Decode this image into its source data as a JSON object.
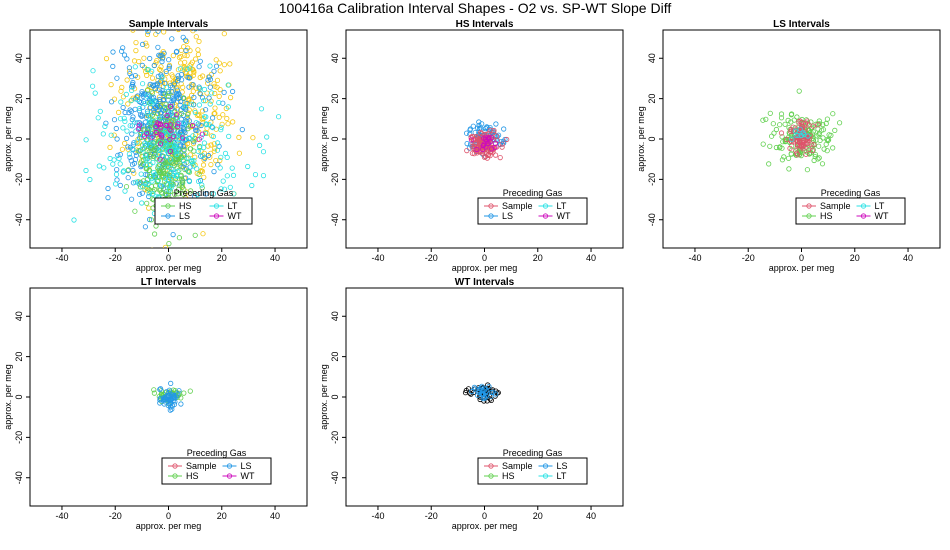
{
  "page_title": "100416a   Calibration Interval Shapes - O2 vs. SP-WT Slope Diff",
  "colors": {
    "Sample": "#df536b",
    "HS": "#61d04f",
    "LS": "#2297e6",
    "LT": "#28e2e5",
    "WT": "#cd0bbc",
    "Sample_primary": "#f5c710",
    "WT_primary": "#000000"
  },
  "chart_data": [
    {
      "type": "scatter",
      "title": "Sample Intervals",
      "xlabel": "approx. per meg",
      "ylabel": "approx. per meg",
      "xlim": [
        -52,
        52
      ],
      "ylim": [
        -54,
        54
      ],
      "xticks": [
        -40,
        -20,
        0,
        20,
        40
      ],
      "yticks": [
        -40,
        -20,
        0,
        20,
        40
      ],
      "legend": {
        "title": "Preceding Gas",
        "entries": [
          "HS",
          "LT",
          "LS",
          "WT"
        ]
      },
      "series": [
        {
          "name": "Sample",
          "color": "#f5c710",
          "count": 350,
          "center": [
            3,
            15
          ],
          "spread": [
            10,
            22
          ]
        },
        {
          "name": "LS",
          "color": "#2297e6",
          "count": 420,
          "center": [
            -2,
            8
          ],
          "spread": [
            9,
            18
          ]
        },
        {
          "name": "HS",
          "color": "#61d04f",
          "count": 260,
          "center": [
            -1,
            -10
          ],
          "spread": [
            5,
            15
          ]
        },
        {
          "name": "LT",
          "color": "#28e2e5",
          "count": 230,
          "center": [
            0,
            -5
          ],
          "spread": [
            14,
            17
          ]
        },
        {
          "name": "WT",
          "color": "#cd0bbc",
          "count": 35,
          "center": [
            -2,
            5
          ],
          "spread": [
            6,
            5
          ]
        }
      ]
    },
    {
      "type": "scatter",
      "title": "HS Intervals",
      "xlabel": "approx. per meg",
      "ylabel": "approx. per meg",
      "xlim": [
        -52,
        52
      ],
      "ylim": [
        -54,
        54
      ],
      "xticks": [
        -40,
        -20,
        0,
        20,
        40
      ],
      "yticks": [
        -40,
        -20,
        0,
        20,
        40
      ],
      "legend": {
        "title": "Preceding Gas",
        "entries": [
          "Sample",
          "LT",
          "LS",
          "WT"
        ]
      },
      "series": [
        {
          "name": "LS",
          "color": "#2297e6",
          "count": 90,
          "center": [
            0,
            0
          ],
          "spread": [
            3.5,
            3.5
          ]
        },
        {
          "name": "Sample",
          "color": "#df536b",
          "count": 130,
          "center": [
            0,
            -3
          ],
          "spread": [
            3,
            3
          ]
        },
        {
          "name": "WT",
          "color": "#cd0bbc",
          "count": 20,
          "center": [
            0,
            -2
          ],
          "spread": [
            2,
            2
          ]
        }
      ]
    },
    {
      "type": "scatter",
      "title": "LS Intervals",
      "xlabel": "approx. per meg",
      "ylabel": "approx. per meg",
      "xlim": [
        -52,
        52
      ],
      "ylim": [
        -54,
        54
      ],
      "xticks": [
        -40,
        -20,
        0,
        20,
        40
      ],
      "yticks": [
        -40,
        -20,
        0,
        20,
        40
      ],
      "legend": {
        "title": "Preceding Gas",
        "entries": [
          "Sample",
          "LT",
          "HS",
          "WT"
        ]
      },
      "series": [
        {
          "name": "HS",
          "color": "#61d04f",
          "count": 170,
          "center": [
            0,
            1
          ],
          "spread": [
            6,
            6
          ]
        },
        {
          "name": "Sample",
          "color": "#df536b",
          "count": 90,
          "center": [
            0,
            0
          ],
          "spread": [
            2.5,
            4
          ]
        },
        {
          "name": "LT",
          "color": "#28e2e5",
          "count": 10,
          "center": [
            0,
            1
          ],
          "spread": [
            2,
            2
          ]
        }
      ]
    },
    {
      "type": "scatter",
      "title": "LT Intervals",
      "xlabel": "approx. per meg",
      "ylabel": "approx. per meg",
      "xlim": [
        -52,
        52
      ],
      "ylim": [
        -54,
        54
      ],
      "xticks": [
        -40,
        -20,
        0,
        20,
        40
      ],
      "yticks": [
        -40,
        -20,
        0,
        20,
        40
      ],
      "legend": {
        "title": "Preceding Gas",
        "entries": [
          "Sample",
          "LS",
          "HS",
          "WT"
        ]
      },
      "series": [
        {
          "name": "HS",
          "color": "#61d04f",
          "count": 40,
          "center": [
            0,
            1
          ],
          "spread": [
            3,
            1.5
          ]
        },
        {
          "name": "LS",
          "color": "#2297e6",
          "count": 50,
          "center": [
            0,
            -1
          ],
          "spread": [
            2,
            2.5
          ]
        }
      ]
    },
    {
      "type": "scatter",
      "title": "WT Intervals",
      "xlabel": "approx. per meg",
      "ylabel": "approx. per meg",
      "xlim": [
        -52,
        52
      ],
      "ylim": [
        -54,
        54
      ],
      "xticks": [
        -40,
        -20,
        0,
        20,
        40
      ],
      "yticks": [
        -40,
        -20,
        0,
        20,
        40
      ],
      "legend": {
        "title": "Preceding Gas",
        "entries": [
          "Sample",
          "LS",
          "HS",
          "LT"
        ]
      },
      "series": [
        {
          "name": "WT",
          "color": "#000000",
          "count": 45,
          "center": [
            0,
            2
          ],
          "spread": [
            3,
            2
          ]
        },
        {
          "name": "LS",
          "color": "#2297e6",
          "count": 30,
          "center": [
            0,
            2
          ],
          "spread": [
            2,
            1.5
          ]
        }
      ]
    }
  ]
}
